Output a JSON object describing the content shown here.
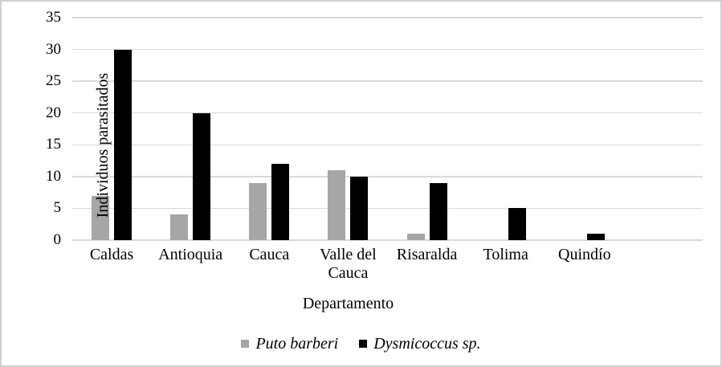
{
  "chart_data": {
    "type": "bar",
    "categories": [
      "Caldas",
      "Antioquia",
      "Cauca",
      "Valle del Cauca",
      "Risaralda",
      "Tolima",
      "Quindío"
    ],
    "series": [
      {
        "name": "Puto barberi",
        "color": "#a6a6a6",
        "values": [
          7,
          4,
          9,
          11,
          1,
          0,
          0
        ]
      },
      {
        "name": "Dysmicoccus sp.",
        "color": "#000000",
        "values": [
          30,
          20,
          12,
          10,
          9,
          5,
          1
        ]
      }
    ],
    "title": "",
    "xlabel": "Departamento",
    "ylabel": "Individuos parasitados",
    "ylim": [
      0,
      35
    ],
    "ytick_step": 5,
    "yticks": [
      "0",
      "5",
      "10",
      "15",
      "20",
      "25",
      "30",
      "35"
    ],
    "grid": true,
    "gridline_color": "#d9d9d9",
    "legend_position": "bottom",
    "empty_trailing_slots": 1
  }
}
